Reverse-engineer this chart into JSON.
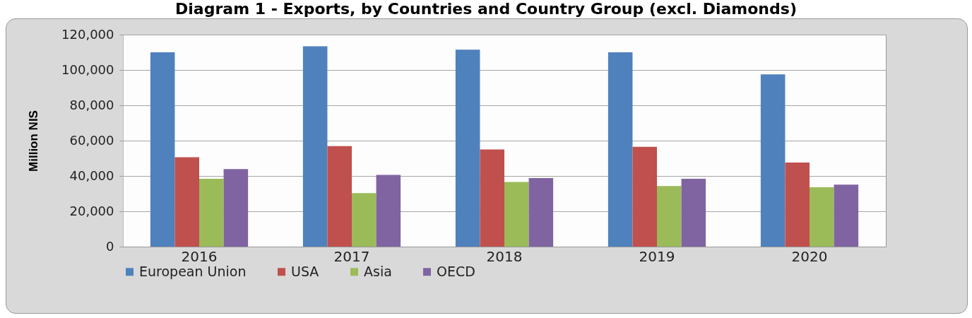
{
  "chart_data": {
    "type": "bar",
    "title": "Diagram 1 - Exports, by Countries and Country Group (excl. Diamonds)",
    "ylabel": "Million NIS",
    "categories": [
      "2016",
      "2017",
      "2018",
      "2019",
      "2020"
    ],
    "series": [
      {
        "name": "European Union",
        "color": "#4f81bd",
        "values": [
          110000,
          113400,
          111500,
          110000,
          97500
        ]
      },
      {
        "name": "USA",
        "color": "#c0504d",
        "values": [
          50600,
          56900,
          55000,
          56500,
          47600
        ]
      },
      {
        "name": "Asia",
        "color": "#9bbb59",
        "values": [
          38400,
          30300,
          36600,
          34300,
          33600
        ]
      },
      {
        "name": "OECD",
        "color": "#8064a2",
        "values": [
          43900,
          40600,
          38800,
          38400,
          35100
        ]
      }
    ],
    "ylim": [
      0,
      120000
    ],
    "yticks": [
      0,
      {
        "value": 20000,
        "label": "20,000"
      },
      {
        "value": 40000,
        "label": "40,000"
      },
      {
        "value": 60000,
        "label": "60,000"
      },
      {
        "value": 80000,
        "label": "80,000"
      },
      {
        "value": 100000,
        "label": "100,000"
      },
      {
        "value": 120000,
        "label": "120,000"
      }
    ],
    "grid": "y",
    "legend": "bottom"
  }
}
